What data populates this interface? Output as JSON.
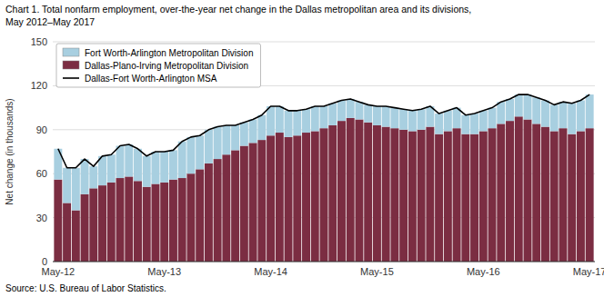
{
  "chart_data": {
    "type": "bar",
    "title": "Chart 1. Total nonfarm employment, over-the-year net change in the Dallas metropolitan area and its divisions,",
    "subtitle": "May 2012–May 2017",
    "y_label": "Net change (in thousands)",
    "annotations": [
      "Source: U.S. Bureau of Labor Statistics."
    ],
    "stacked": true,
    "grid": true,
    "legend": "upper left",
    "ylim": [
      0,
      150
    ],
    "yticks": [
      0,
      30,
      60,
      90,
      120,
      150
    ],
    "categories": [
      "May-12",
      null,
      null,
      null,
      null,
      null,
      null,
      null,
      null,
      null,
      null,
      null,
      "May-13",
      null,
      null,
      null,
      null,
      null,
      null,
      null,
      null,
      null,
      null,
      null,
      "May-14",
      null,
      null,
      null,
      null,
      null,
      null,
      null,
      null,
      null,
      null,
      null,
      "May-15",
      null,
      null,
      null,
      null,
      null,
      null,
      null,
      null,
      null,
      null,
      null,
      "May-16",
      null,
      null,
      null,
      null,
      null,
      null,
      null,
      null,
      null,
      null,
      null,
      "May-17"
    ],
    "series": [
      {
        "name": "Dallas-Plano-Irving Metropolitan Division",
        "type": "bar",
        "color": "#7b2d42",
        "values": [
          56,
          40,
          35,
          46,
          50,
          52,
          54,
          57,
          58,
          55,
          51,
          53,
          54,
          56,
          57,
          60,
          63,
          67,
          70,
          73,
          76,
          79,
          81,
          83,
          86,
          88,
          85,
          86,
          88,
          89,
          91,
          93,
          96,
          98,
          97,
          95,
          93,
          92,
          91,
          90,
          89,
          90,
          92,
          87,
          89,
          91,
          87,
          87,
          89,
          91,
          94,
          96,
          99,
          97,
          94,
          92,
          89,
          91,
          87,
          89,
          91
        ]
      },
      {
        "name": "Fort Worth-Arlington Metropolitan Division",
        "type": "bar",
        "color": "#a8cfe0",
        "values": [
          21,
          24,
          29,
          24,
          15,
          20,
          19,
          22,
          22,
          22,
          21,
          22,
          21,
          20,
          25,
          25,
          23,
          23,
          22,
          20,
          17,
          16,
          16,
          17,
          20,
          18,
          18,
          17,
          16,
          17,
          15,
          15,
          14,
          13,
          12,
          12,
          13,
          14,
          14,
          14,
          14,
          14,
          14,
          14,
          14,
          14,
          13,
          14,
          14,
          14,
          15,
          15,
          15,
          17,
          18,
          18,
          18,
          18,
          21,
          21,
          23
        ]
      },
      {
        "name": "Dallas-Fort Worth-Arlington MSA",
        "type": "line",
        "color": "#000000",
        "values": [
          77,
          64,
          64,
          70,
          65,
          72,
          73,
          79,
          80,
          77,
          72,
          75,
          75,
          76,
          82,
          85,
          86,
          90,
          92,
          93,
          93,
          95,
          97,
          100,
          106,
          106,
          103,
          103,
          104,
          106,
          106,
          108,
          110,
          111,
          109,
          107,
          106,
          106,
          105,
          104,
          103,
          104,
          106,
          101,
          103,
          105,
          100,
          101,
          103,
          105,
          109,
          111,
          114,
          114,
          112,
          110,
          107,
          109,
          108,
          110,
          114
        ]
      }
    ]
  }
}
